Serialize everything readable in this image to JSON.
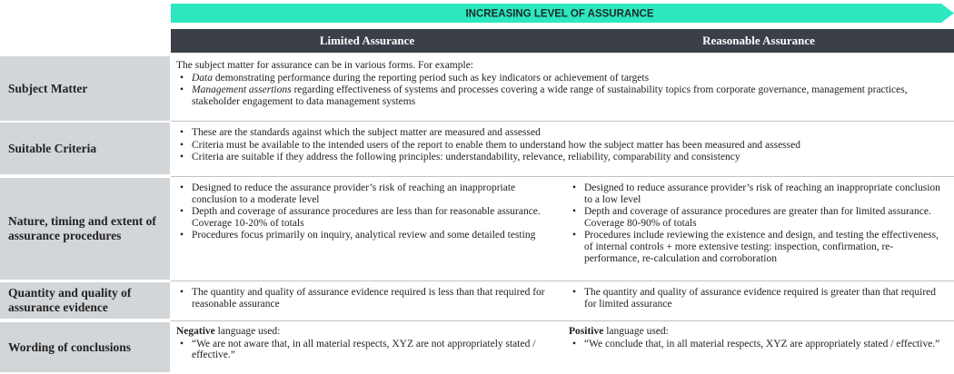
{
  "banner": "INCREASING LEVEL OF ASSURANCE",
  "columns": [
    "Limited Assurance",
    "Reasonable Assurance"
  ],
  "rows": [
    {
      "label": "Subject Matter",
      "span": {
        "intro": "The subject matter for assurance can be in various forms. For example:",
        "bullets": [
          {
            "em": "Data",
            "text": " demonstrating performance during the reporting period such as key indicators or achievement of targets"
          },
          {
            "em": "Management assertions",
            "text": " regarding effectiveness of systems and processes covering a wide range of sustainability topics from corporate governance, management practices, stakeholder engagement to data management systems"
          }
        ]
      }
    },
    {
      "label": "Suitable Criteria",
      "span": {
        "bullets": [
          {
            "text": "These are the standards against which the subject matter are measured and assessed"
          },
          {
            "text": "Criteria must be available to the intended users of the report to enable them to understand how the subject matter has been measured and assessed"
          },
          {
            "text": "Criteria are suitable if they address the following principles: understandability, relevance, reliability, comparability and consistency"
          }
        ]
      }
    },
    {
      "label": "Nature, timing and extent of assurance procedures",
      "cells": [
        {
          "bullets": [
            {
              "text": "Designed to reduce the assurance provider’s risk of reaching an inappropriate conclusion to a moderate level"
            },
            {
              "text": "Depth and coverage of assurance procedures are less than for reasonable assurance. Coverage 10-20% of totals"
            },
            {
              "text": "Procedures focus primarily on inquiry, analytical review and some detailed testing"
            }
          ]
        },
        {
          "bullets": [
            {
              "text": "Designed to reduce assurance provider’s risk of reaching an inappropriate conclusion to a low level"
            },
            {
              "text": "Depth and coverage of assurance procedures are greater than for limited assurance. Coverage 80-90% of totals"
            },
            {
              "text": "Procedures include reviewing the existence and design, and testing the effectiveness, of internal controls + more extensive testing: inspection, confirmation, re-performance, re-calculation and corroboration"
            }
          ]
        }
      ]
    },
    {
      "label": "Quantity and quality of assurance evidence",
      "cells": [
        {
          "bullets": [
            {
              "text": "The quantity and quality of assurance evidence required is less than that required for reasonable assurance"
            }
          ]
        },
        {
          "bullets": [
            {
              "text": "The quantity and quality of assurance evidence required is greater than that required for limited assurance"
            }
          ]
        }
      ]
    },
    {
      "label": "Wording of conclusions",
      "cells": [
        {
          "strong": "Negative",
          "intro": " language used:",
          "bullets": [
            {
              "text": "“We are not aware that, in all material respects, XYZ are not appropriately stated / effective.”"
            }
          ]
        },
        {
          "strong": "Positive",
          "intro": " language used:",
          "bullets": [
            {
              "text": "“We conclude that, in all material respects, XYZ are appropriately stated / effective.”"
            }
          ]
        }
      ]
    }
  ]
}
